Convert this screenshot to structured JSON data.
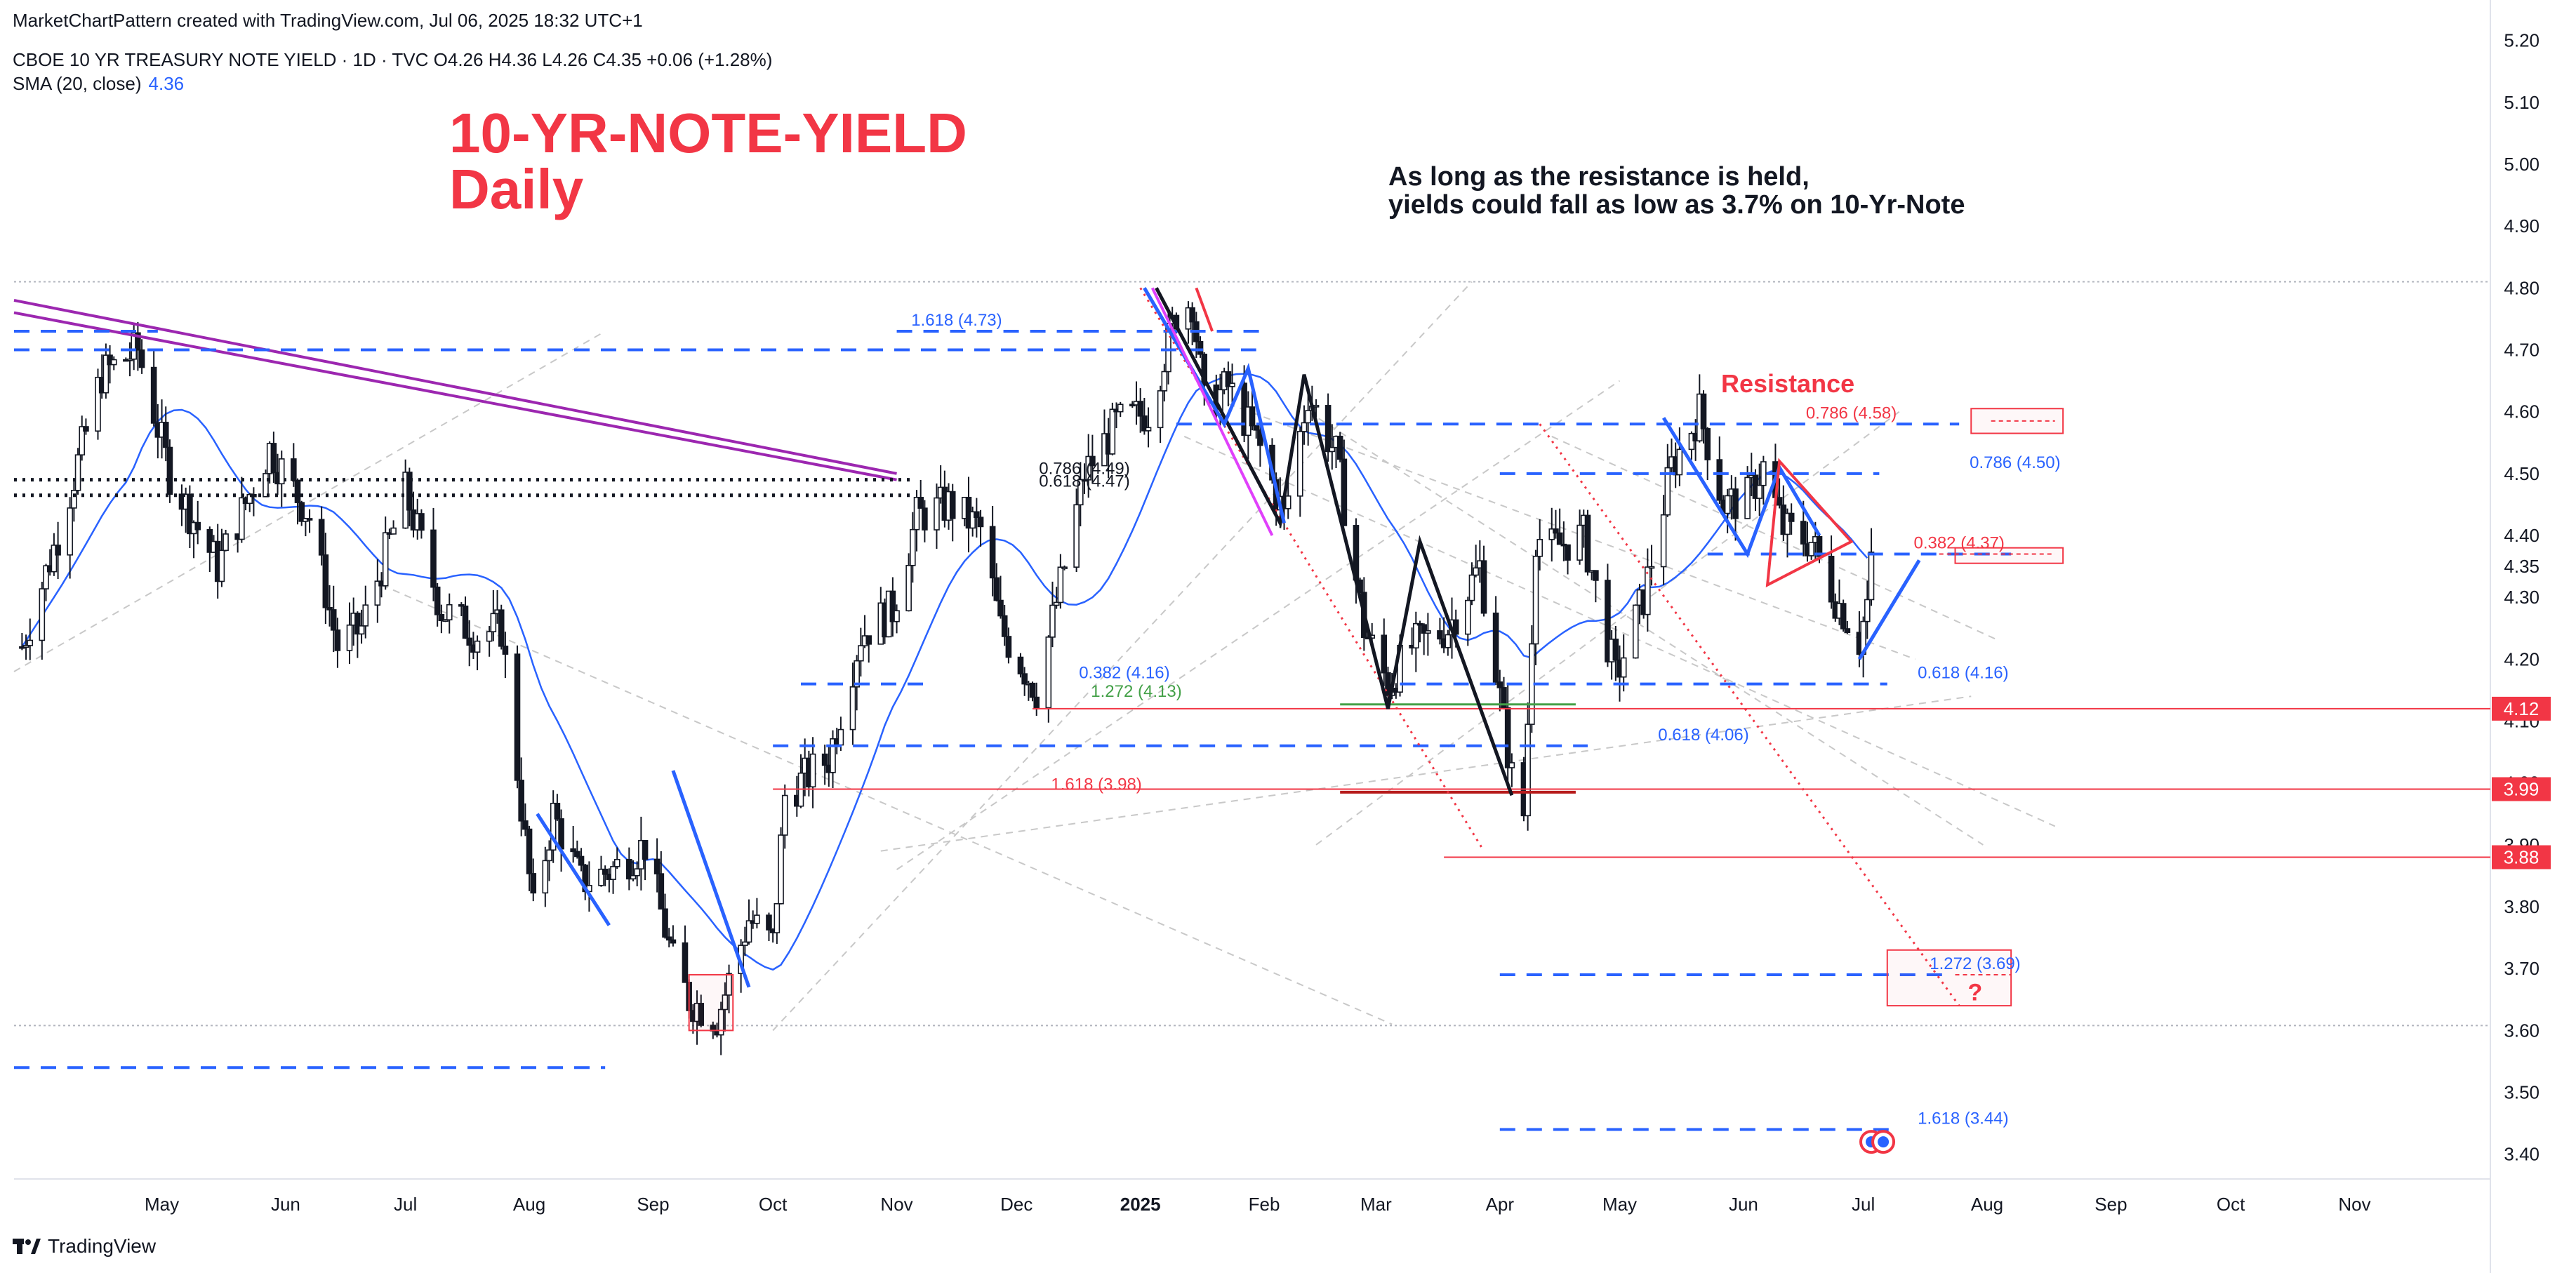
{
  "header": {
    "credit": "MarketChartPattern created with TradingView.com, Jul 06, 2025 18:32 UTC+1",
    "symbol_line": "CBOE 10 YR TREASURY NOTE YIELD · 1D · TVC  O4.26  H4.36  L4.26  C4.35  +0.06 (+1.28%)",
    "sma_label": "SMA (20, close)",
    "sma_value": "4.36"
  },
  "title_line1": "10-YR-NOTE-YIELD",
  "title_line2": "Daily",
  "note_line1": "As long as the resistance is held,",
  "note_line2": "yields could fall as low as 3.7% on 10-Yr-Note",
  "resistance_label": "Resistance",
  "footer_logo": "TradingView",
  "colors": {
    "up": "#131722",
    "ma": "#2962ff",
    "red": "#f23645",
    "purple": "#9c27b0",
    "green": "#43a047",
    "darkred": "#b71c1c"
  },
  "chart_data": {
    "type": "candlestick",
    "ylim": [
      3.36,
      5.22
    ],
    "x_range": [
      "2024-03-25",
      "2025-12-05"
    ],
    "y_ticks": [
      "5.20",
      "5.10",
      "5.00",
      "4.90",
      "4.80",
      "4.70",
      "4.60",
      "4.50",
      "4.40",
      "4.35",
      "4.30",
      "4.20",
      "4.10",
      "4.00",
      "3.90",
      "3.80",
      "3.70",
      "3.60",
      "3.50",
      "3.40"
    ],
    "x_ticks": [
      {
        "date": "2024-05-01",
        "label": "May",
        "bold": false
      },
      {
        "date": "2024-06-01",
        "label": "Jun",
        "bold": false
      },
      {
        "date": "2024-07-01",
        "label": "Jul",
        "bold": false
      },
      {
        "date": "2024-08-01",
        "label": "Aug",
        "bold": false
      },
      {
        "date": "2024-09-01",
        "label": "Sep",
        "bold": false
      },
      {
        "date": "2024-10-01",
        "label": "Oct",
        "bold": false
      },
      {
        "date": "2024-11-01",
        "label": "Nov",
        "bold": false
      },
      {
        "date": "2024-12-01",
        "label": "Dec",
        "bold": false
      },
      {
        "date": "2025-01-01",
        "label": "2025",
        "bold": true
      },
      {
        "date": "2025-02-01",
        "label": "Feb",
        "bold": false
      },
      {
        "date": "2025-03-01",
        "label": "Mar",
        "bold": false
      },
      {
        "date": "2025-04-01",
        "label": "Apr",
        "bold": false
      },
      {
        "date": "2025-05-01",
        "label": "May",
        "bold": false
      },
      {
        "date": "2025-06-01",
        "label": "Jun",
        "bold": false
      },
      {
        "date": "2025-07-01",
        "label": "Jul",
        "bold": false
      },
      {
        "date": "2025-08-01",
        "label": "Aug",
        "bold": false
      },
      {
        "date": "2025-09-01",
        "label": "Sep",
        "bold": false
      },
      {
        "date": "2025-10-01",
        "label": "Oct",
        "bold": false
      },
      {
        "date": "2025-11-01",
        "label": "Nov",
        "bold": false
      }
    ],
    "price_path": [
      [
        "2024-03-27",
        4.22
      ],
      [
        "2024-04-05",
        4.4
      ],
      [
        "2024-04-16",
        4.66
      ],
      [
        "2024-04-25",
        4.7
      ],
      [
        "2024-05-03",
        4.5
      ],
      [
        "2024-05-15",
        4.35
      ],
      [
        "2024-05-28",
        4.54
      ],
      [
        "2024-06-07",
        4.43
      ],
      [
        "2024-06-14",
        4.22
      ],
      [
        "2024-06-20",
        4.25
      ],
      [
        "2024-07-01",
        4.47
      ],
      [
        "2024-07-10",
        4.28
      ],
      [
        "2024-07-19",
        4.24
      ],
      [
        "2024-07-25",
        4.25
      ],
      [
        "2024-08-02",
        3.79
      ],
      [
        "2024-08-07",
        3.95
      ],
      [
        "2024-08-14",
        3.84
      ],
      [
        "2024-08-22",
        3.86
      ],
      [
        "2024-08-30",
        3.9
      ],
      [
        "2024-09-06",
        3.71
      ],
      [
        "2024-09-10",
        3.65
      ],
      [
        "2024-09-17",
        3.62
      ],
      [
        "2024-09-25",
        3.78
      ],
      [
        "2024-10-01",
        3.74
      ],
      [
        "2024-10-04",
        3.98
      ],
      [
        "2024-10-15",
        4.04
      ],
      [
        "2024-10-23",
        4.24
      ],
      [
        "2024-10-31",
        4.28
      ],
      [
        "2024-11-06",
        4.43
      ],
      [
        "2024-11-14",
        4.45
      ],
      [
        "2024-11-22",
        4.41
      ],
      [
        "2024-11-27",
        4.25
      ],
      [
        "2024-12-06",
        4.15
      ],
      [
        "2024-12-12",
        4.32
      ],
      [
        "2024-12-18",
        4.5
      ],
      [
        "2024-12-26",
        4.58
      ],
      [
        "2025-01-03",
        4.6
      ],
      [
        "2025-01-10",
        4.76
      ],
      [
        "2025-01-14",
        4.78
      ],
      [
        "2025-01-17",
        4.61
      ],
      [
        "2025-01-23",
        4.64
      ],
      [
        "2025-01-31",
        4.54
      ],
      [
        "2025-02-06",
        4.43
      ],
      [
        "2025-02-12",
        4.63
      ],
      [
        "2025-02-19",
        4.53
      ],
      [
        "2025-02-26",
        4.25
      ],
      [
        "2025-03-04",
        4.16
      ],
      [
        "2025-03-10",
        4.22
      ],
      [
        "2025-03-19",
        4.25
      ],
      [
        "2025-03-27",
        4.35
      ],
      [
        "2025-04-04",
        4.01
      ],
      [
        "2025-04-07",
        3.95
      ],
      [
        "2025-04-10",
        4.4
      ],
      [
        "2025-04-14",
        4.38
      ],
      [
        "2025-04-22",
        4.4
      ],
      [
        "2025-04-30",
        4.17
      ],
      [
        "2025-05-07",
        4.3
      ],
      [
        "2025-05-14",
        4.51
      ],
      [
        "2025-05-21",
        4.6
      ],
      [
        "2025-05-27",
        4.45
      ],
      [
        "2025-06-02",
        4.46
      ],
      [
        "2025-06-06",
        4.51
      ],
      [
        "2025-06-11",
        4.41
      ],
      [
        "2025-06-18",
        4.39
      ],
      [
        "2025-06-24",
        4.3
      ],
      [
        "2025-06-30",
        4.23
      ],
      [
        "2025-07-02",
        4.29
      ],
      [
        "2025-07-03",
        4.35
      ]
    ],
    "levels": [
      {
        "price": 4.12,
        "label": "4.12"
      },
      {
        "price": 3.99,
        "label": "3.99"
      },
      {
        "price": 3.88,
        "label": "3.88"
      }
    ],
    "annotations": [
      {
        "text": "1.618 (4.73)",
        "date": "2024-11-16",
        "price": 4.73,
        "color": "blue"
      },
      {
        "text": "0.786 (4.49)",
        "date": "2024-12-18",
        "price": 4.49,
        "color": "dark"
      },
      {
        "text": "0.618 (4.47)",
        "date": "2024-12-18",
        "price": 4.47,
        "color": "dark"
      },
      {
        "text": "0.382 (4.16)",
        "date": "2024-12-28",
        "price": 4.16,
        "color": "blue"
      },
      {
        "text": "1.272 (4.13)",
        "date": "2024-12-31",
        "price": 4.13,
        "color": "green"
      },
      {
        "text": "1.618 (3.98)",
        "date": "2024-12-21",
        "price": 3.98,
        "color": "red"
      },
      {
        "text": "0.786 (4.58)",
        "date": "2025-06-28",
        "price": 4.58,
        "color": "red"
      },
      {
        "text": "0.786 (4.50)",
        "date": "2025-08-08",
        "price": 4.5,
        "color": "blue"
      },
      {
        "text": "0.382 (4.37)",
        "date": "2025-07-25",
        "price": 4.37,
        "color": "red"
      },
      {
        "text": "0.618 (4.16)",
        "date": "2025-07-26",
        "price": 4.16,
        "color": "blue"
      },
      {
        "text": "0.618 (4.06)",
        "date": "2025-05-22",
        "price": 4.06,
        "color": "blue"
      },
      {
        "text": "1.272 (3.69)",
        "date": "2025-07-29",
        "price": 3.69,
        "color": "blue"
      },
      {
        "text": "?",
        "date": "2025-07-29",
        "price": 3.66,
        "color": "red"
      },
      {
        "text": "1.618 (3.44)",
        "date": "2025-07-26",
        "price": 3.44,
        "color": "blue"
      }
    ]
  }
}
